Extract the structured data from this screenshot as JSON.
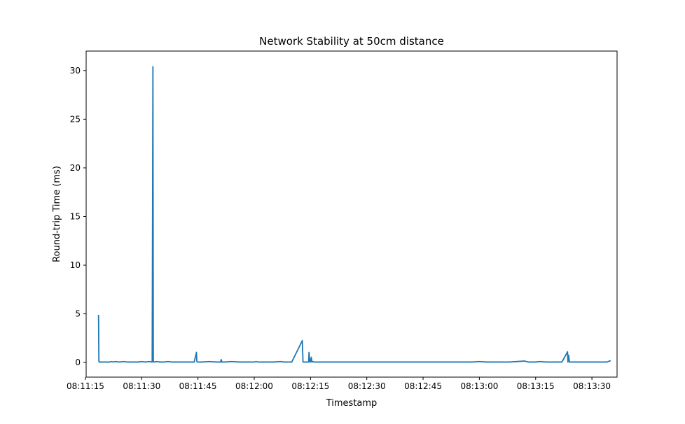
{
  "chart_data": {
    "type": "line",
    "title": "Network Stability at 50cm distance",
    "xlabel": "Timestamp",
    "ylabel": "Round-trip Time (ms)",
    "x_ticks": [
      "08:11:15",
      "08:11:30",
      "08:11:45",
      "08:12:00",
      "08:12:15",
      "08:12:30",
      "08:12:45",
      "08:13:00",
      "08:13:15",
      "08:13:30"
    ],
    "x_tick_seconds": [
      675,
      690,
      705,
      720,
      735,
      750,
      765,
      780,
      795,
      810
    ],
    "y_ticks": [
      "0",
      "5",
      "10",
      "15",
      "20",
      "25",
      "30"
    ],
    "ylim": [
      -1.5,
      32
    ],
    "xlim": [
      "08:11:15.2",
      "08:13:36.7"
    ],
    "grid": false,
    "line_color": "#1f77b4",
    "series": [
      {
        "x": [
          "08:11:18.5",
          "08:11:18.6",
          "08:11:18.7",
          "08:11:20",
          "08:11:21.5",
          "08:11:22",
          "08:11:22.5",
          "08:11:23",
          "08:11:24",
          "08:11:25.5",
          "08:11:26",
          "08:11:27",
          "08:11:28",
          "08:11:29",
          "08:11:30",
          "08:11:31",
          "08:11:32",
          "08:11:32.8",
          "08:11:33.0",
          "08:11:33.1",
          "08:11:33.3",
          "08:11:34",
          "08:11:35",
          "08:11:36",
          "08:11:37",
          "08:11:38",
          "08:11:39",
          "08:11:40",
          "08:11:41",
          "08:11:42",
          "08:11:43",
          "08:11:44",
          "08:11:44.6",
          "08:11:44.7",
          "08:11:45",
          "08:11:46",
          "08:11:48",
          "08:11:50",
          "08:11:51",
          "08:11:51.2",
          "08:11:51.4",
          "08:11:52",
          "08:11:54",
          "08:11:56",
          "08:11:58",
          "08:12:00",
          "08:12:00.5",
          "08:12:01",
          "08:12:03",
          "08:12:05",
          "08:12:07",
          "08:12:08",
          "08:12:10",
          "08:12:12.8",
          "08:12:13",
          "08:12:14.5",
          "08:12:14.6",
          "08:12:14.8",
          "08:12:15.0",
          "08:12:15.2",
          "08:12:15.4",
          "08:12:15.6",
          "08:12:16",
          "08:12:17",
          "08:12:20",
          "08:12:25",
          "08:12:30",
          "08:12:40",
          "08:12:50",
          "08:12:58",
          "08:13:00",
          "08:13:02",
          "08:13:04",
          "08:13:08",
          "08:13:12",
          "08:13:13",
          "08:13:15",
          "08:13:16",
          "08:13:18",
          "08:13:20",
          "08:13:22",
          "08:13:23.5",
          "08:13:23.6",
          "08:13:23.8",
          "08:13:24",
          "08:13:24.2",
          "08:13:26",
          "08:13:30",
          "08:13:34",
          "08:13:35"
        ],
        "values": [
          4.9,
          0.1,
          0.05,
          0.05,
          0.05,
          0.1,
          0.05,
          0.1,
          0.05,
          0.1,
          0.05,
          0.05,
          0.05,
          0.05,
          0.1,
          0.05,
          0.1,
          0.05,
          30.4,
          0.1,
          0.05,
          0.1,
          0.05,
          0.05,
          0.1,
          0.05,
          0.05,
          0.05,
          0.05,
          0.05,
          0.05,
          0.05,
          1.05,
          0.1,
          0.05,
          0.05,
          0.1,
          0.05,
          0.05,
          0.3,
          0.05,
          0.05,
          0.1,
          0.05,
          0.05,
          0.05,
          0.1,
          0.05,
          0.05,
          0.05,
          0.1,
          0.05,
          0.05,
          2.25,
          0.05,
          0.05,
          1.05,
          0.1,
          0.05,
          0.55,
          0.05,
          0.1,
          0.05,
          0.05,
          0.05,
          0.05,
          0.05,
          0.05,
          0.05,
          0.05,
          0.1,
          0.05,
          0.05,
          0.05,
          0.15,
          0.05,
          0.05,
          0.1,
          0.05,
          0.05,
          0.05,
          1.1,
          0.05,
          0.75,
          0.05,
          0.05,
          0.05,
          0.05,
          0.05,
          0.2
        ]
      }
    ]
  }
}
